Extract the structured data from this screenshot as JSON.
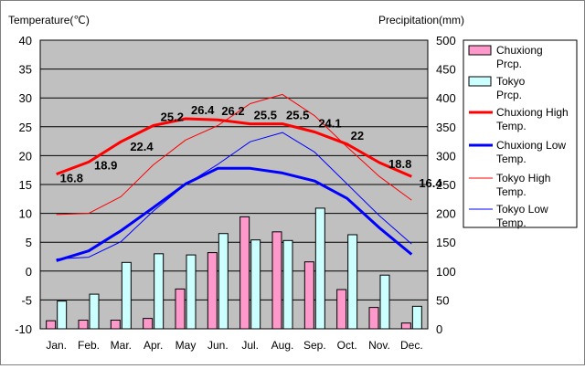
{
  "chart_data": {
    "type": "bar",
    "left_axis_title": "Temperature(℃)",
    "right_axis_title": "Precipitation(mm)",
    "categories": [
      "Jan.",
      "Feb.",
      "Mar.",
      "Apr.",
      "May",
      "Jun.",
      "Jul.",
      "Aug.",
      "Sep.",
      "Oct.",
      "Nov.",
      "Dec."
    ],
    "y_left": {
      "min": -10,
      "max": 40,
      "step": 5,
      "ticks": [
        "40",
        "35",
        "30",
        "25",
        "20",
        "15",
        "10",
        "5",
        "0",
        "-5",
        "-10"
      ]
    },
    "y_right": {
      "min": 0,
      "max": 500,
      "step": 50,
      "ticks": [
        "500",
        "450",
        "400",
        "350",
        "300",
        "250",
        "200",
        "150",
        "100",
        "50",
        "0"
      ]
    },
    "grid": true,
    "legend_position": "right",
    "bar_series": [
      {
        "name": "Chuxiong Prcp.",
        "color": "#ff99cc",
        "values": [
          14,
          15,
          15,
          18,
          69,
          132,
          194,
          168,
          116,
          68,
          37,
          10
        ]
      },
      {
        "name": "Tokyo Prcp.",
        "color": "#ccffff",
        "values": [
          48,
          60,
          115,
          130,
          128,
          165,
          154,
          153,
          209,
          163,
          93,
          39
        ]
      }
    ],
    "line_series": [
      {
        "name": "Chuxiong High Temp.",
        "color": "#ff0000",
        "width": 3,
        "values": [
          16.8,
          18.9,
          22.4,
          25.2,
          26.4,
          26.2,
          25.5,
          25.5,
          24.1,
          22.0,
          18.8,
          16.4
        ],
        "data_labels": [
          "16.8",
          "18.9",
          "22.4",
          "25.2",
          "26.4",
          "26.2",
          "25.5",
          "25.5",
          "24.1",
          "22",
          "18.8",
          "16.4"
        ]
      },
      {
        "name": "Chuxiong Low Temp.",
        "color": "#0000ff",
        "width": 3,
        "values": [
          1.8,
          3.5,
          7.0,
          11.0,
          15.1,
          17.8,
          17.8,
          17.0,
          15.6,
          12.6,
          7.5,
          2.9
        ]
      },
      {
        "name": "Tokyo High Temp.",
        "color": "#ff0000",
        "width": 1,
        "values": [
          9.8,
          10.0,
          12.9,
          18.4,
          22.7,
          25.2,
          29.0,
          30.6,
          26.9,
          21.5,
          16.4,
          12.3
        ]
      },
      {
        "name": "Tokyo Low Temp.",
        "color": "#0000ff",
        "width": 1,
        "values": [
          2.1,
          2.4,
          5.1,
          10.4,
          15.0,
          18.5,
          22.4,
          24.0,
          20.6,
          15.1,
          9.6,
          4.7
        ]
      }
    ],
    "legend": [
      {
        "kind": "box",
        "label": "Chuxiong Prcp.",
        "color": "#ff99cc"
      },
      {
        "kind": "box",
        "label": "Tokyo Prcp.",
        "color": "#ccffff"
      },
      {
        "kind": "line",
        "label": "Chuxiong High Temp.",
        "color": "#ff0000",
        "width": 3
      },
      {
        "kind": "line",
        "label": "Chuxiong Low Temp.",
        "color": "#0000ff",
        "width": 3
      },
      {
        "kind": "line",
        "label": "Tokyo High Temp.",
        "color": "#ff0000",
        "width": 1
      },
      {
        "kind": "line",
        "label": "Tokyo Low Temp.",
        "color": "#0000ff",
        "width": 1
      }
    ]
  }
}
